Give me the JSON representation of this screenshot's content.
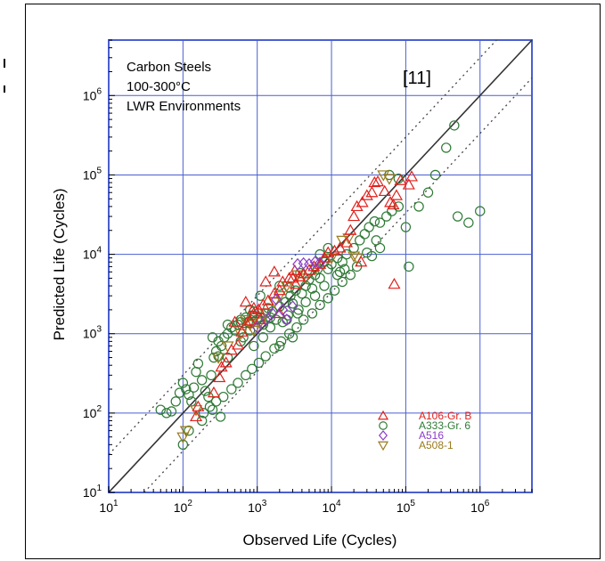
{
  "chart_data": {
    "type": "scatter",
    "xlabel": "Observed Life (Cycles)",
    "ylabel": "Predicted Life (Cycles)",
    "x_scale": "log",
    "y_scale": "log",
    "xlim": [
      10,
      5000000
    ],
    "ylim": [
      10,
      5000000
    ],
    "x_ticks": [
      {
        "base": "10",
        "exp": "1",
        "value": 10
      },
      {
        "base": "10",
        "exp": "2",
        "value": 100
      },
      {
        "base": "10",
        "exp": "3",
        "value": 1000
      },
      {
        "base": "10",
        "exp": "4",
        "value": 10000
      },
      {
        "base": "10",
        "exp": "5",
        "value": 100000
      },
      {
        "base": "10",
        "exp": "6",
        "value": 1000000
      }
    ],
    "y_ticks": [
      {
        "base": "10",
        "exp": "1",
        "value": 10
      },
      {
        "base": "10",
        "exp": "2",
        "value": 100
      },
      {
        "base": "10",
        "exp": "3",
        "value": 1000
      },
      {
        "base": "10",
        "exp": "4",
        "value": 10000
      },
      {
        "base": "10",
        "exp": "5",
        "value": 100000
      },
      {
        "base": "10",
        "exp": "6",
        "value": 1000000
      }
    ],
    "grid": true,
    "grid_color": "#4a5fd0",
    "info_lines": [
      "Carbon Steels",
      "100-300°C",
      "LWR Environments"
    ],
    "reference_label": "[11]",
    "legend_placement": "bottom-right",
    "reference_lines": [
      {
        "style": "solid",
        "factor": 1
      },
      {
        "style": "dotted",
        "factor": 3
      },
      {
        "style": "dotted",
        "factor": 0.333
      }
    ],
    "series": [
      {
        "name": "A106-Gr. B",
        "marker": "triangle-up",
        "color": "#e0201c",
        "points": [
          [
            150,
            90
          ],
          [
            160,
            120
          ],
          [
            260,
            180
          ],
          [
            310,
            280
          ],
          [
            330,
            380
          ],
          [
            380,
            430
          ],
          [
            450,
            620
          ],
          [
            550,
            720
          ],
          [
            620,
            1050
          ],
          [
            720,
            1350
          ],
          [
            800,
            1450
          ],
          [
            900,
            1800
          ],
          [
            1050,
            2000
          ],
          [
            1200,
            2300
          ],
          [
            1400,
            2600
          ],
          [
            1700,
            3200
          ],
          [
            2000,
            3500
          ],
          [
            2200,
            4500
          ],
          [
            2700,
            5000
          ],
          [
            3000,
            5000
          ],
          [
            3300,
            4200
          ],
          [
            3700,
            5200
          ],
          [
            4200,
            5700
          ],
          [
            5000,
            6300
          ],
          [
            5800,
            7000
          ],
          [
            7000,
            7500
          ],
          [
            8000,
            9000
          ],
          [
            9000,
            10500
          ],
          [
            11000,
            11000
          ],
          [
            13000,
            12000
          ],
          [
            16000,
            14000
          ],
          [
            18000,
            20000
          ],
          [
            20000,
            30000
          ],
          [
            22000,
            40000
          ],
          [
            26000,
            45000
          ],
          [
            30000,
            55000
          ],
          [
            35000,
            60000
          ],
          [
            38000,
            80000
          ],
          [
            42000,
            82000
          ],
          [
            52000,
            62000
          ],
          [
            62000,
            45000
          ],
          [
            68000,
            42000
          ],
          [
            75000,
            55000
          ],
          [
            85000,
            85000
          ],
          [
            110000,
            75000
          ],
          [
            120000,
            95000
          ],
          [
            25000,
            8000
          ],
          [
            70000,
            4200
          ],
          [
            1700,
            6000
          ],
          [
            3200,
            6200
          ],
          [
            1300,
            4500
          ],
          [
            2000,
            1800
          ],
          [
            700,
            2500
          ],
          [
            900,
            2100
          ],
          [
            1100,
            1500
          ],
          [
            500,
            1400
          ]
        ]
      },
      {
        "name": "A333-Gr. 6",
        "marker": "circle",
        "color": "#2f7a35",
        "points": [
          [
            50,
            110
          ],
          [
            60,
            100
          ],
          [
            70,
            105
          ],
          [
            80,
            140
          ],
          [
            90,
            180
          ],
          [
            100,
            240
          ],
          [
            110,
            200
          ],
          [
            120,
            170
          ],
          [
            130,
            140
          ],
          [
            140,
            210
          ],
          [
            150,
            330
          ],
          [
            160,
            420
          ],
          [
            180,
            260
          ],
          [
            200,
            190
          ],
          [
            220,
            160
          ],
          [
            240,
            300
          ],
          [
            260,
            500
          ],
          [
            280,
            600
          ],
          [
            300,
            520
          ],
          [
            330,
            700
          ],
          [
            360,
            900
          ],
          [
            400,
            1000
          ],
          [
            450,
            1200
          ],
          [
            500,
            1100
          ],
          [
            550,
            1300
          ],
          [
            600,
            1400
          ],
          [
            650,
            900
          ],
          [
            700,
            1600
          ],
          [
            750,
            1400
          ],
          [
            800,
            1100
          ],
          [
            850,
            1700
          ],
          [
            900,
            1900
          ],
          [
            1000,
            1500
          ],
          [
            1100,
            1600
          ],
          [
            1200,
            1300
          ],
          [
            1300,
            1800
          ],
          [
            1400,
            2100
          ],
          [
            1500,
            1600
          ],
          [
            1600,
            1900
          ],
          [
            1800,
            1500
          ],
          [
            2000,
            2200
          ],
          [
            2200,
            1400
          ],
          [
            2400,
            2500
          ],
          [
            2600,
            1700
          ],
          [
            2800,
            3000
          ],
          [
            3000,
            2400
          ],
          [
            3300,
            3500
          ],
          [
            3600,
            2000
          ],
          [
            4000,
            3200
          ],
          [
            4500,
            4000
          ],
          [
            5000,
            4800
          ],
          [
            5500,
            3700
          ],
          [
            6000,
            5500
          ],
          [
            6500,
            6500
          ],
          [
            7000,
            5000
          ],
          [
            8000,
            8000
          ],
          [
            9000,
            6500
          ],
          [
            10000,
            7500
          ],
          [
            12000,
            9000
          ],
          [
            14000,
            8000
          ],
          [
            16000,
            10000
          ],
          [
            20000,
            12000
          ],
          [
            24000,
            15000
          ],
          [
            28000,
            18000
          ],
          [
            32000,
            22000
          ],
          [
            38000,
            26000
          ],
          [
            45000,
            25000
          ],
          [
            55000,
            30000
          ],
          [
            65000,
            35000
          ],
          [
            80000,
            40000
          ],
          [
            100000,
            22000
          ],
          [
            110000,
            7000
          ],
          [
            150000,
            40000
          ],
          [
            200000,
            60000
          ],
          [
            250000,
            100000
          ],
          [
            350000,
            220000
          ],
          [
            450000,
            420000
          ],
          [
            500000,
            30000
          ],
          [
            700000,
            25000
          ],
          [
            1000000,
            35000
          ],
          [
            60000,
            100000
          ],
          [
            80000,
            90000
          ],
          [
            45000,
            12000
          ],
          [
            35000,
            9500
          ],
          [
            22000,
            7000
          ],
          [
            18000,
            5500
          ],
          [
            14000,
            4500
          ],
          [
            11000,
            3500
          ],
          [
            9000,
            2800
          ],
          [
            7000,
            2300
          ],
          [
            5500,
            1800
          ],
          [
            4200,
            1500
          ],
          [
            3400,
            1200
          ],
          [
            2700,
            1000
          ],
          [
            2100,
            800
          ],
          [
            1700,
            650
          ],
          [
            1300,
            520
          ],
          [
            1050,
            430
          ],
          [
            850,
            360
          ],
          [
            700,
            300
          ],
          [
            550,
            240
          ],
          [
            450,
            200
          ],
          [
            350,
            160
          ],
          [
            280,
            140
          ],
          [
            230,
            120
          ],
          [
            190,
            100
          ],
          [
            600,
            800
          ],
          [
            900,
            700
          ],
          [
            1200,
            900
          ],
          [
            1500,
            1200
          ],
          [
            2500,
            1500
          ],
          [
            3500,
            1800
          ],
          [
            4500,
            2500
          ],
          [
            6000,
            3000
          ],
          [
            8000,
            4000
          ],
          [
            13000,
            6000
          ],
          [
            100,
            40
          ],
          [
            120,
            60
          ],
          [
            180,
            80
          ],
          [
            250,
            110
          ],
          [
            320,
            90
          ],
          [
            400,
            500
          ],
          [
            300,
            800
          ],
          [
            250,
            900
          ],
          [
            2000,
            700
          ],
          [
            3000,
            900
          ],
          [
            600,
            1500
          ],
          [
            800,
            2000
          ],
          [
            400,
            1300
          ],
          [
            1100,
            3000
          ],
          [
            2000,
            4000
          ],
          [
            2700,
            3800
          ],
          [
            3800,
            5800
          ],
          [
            7000,
            10000
          ],
          [
            9000,
            12000
          ],
          [
            12000,
            5500
          ],
          [
            15000,
            6500
          ],
          [
            40000,
            15000
          ],
          [
            30000,
            10500
          ]
        ]
      },
      {
        "name": "A516",
        "marker": "diamond",
        "color": "#8a3cc8",
        "points": [
          [
            1300,
            1500
          ],
          [
            1800,
            2700
          ],
          [
            2500,
            1500
          ],
          [
            3000,
            2200
          ],
          [
            3500,
            7500
          ],
          [
            4200,
            7700
          ],
          [
            5000,
            7500
          ],
          [
            6000,
            8000
          ],
          [
            7000,
            7800
          ],
          [
            2200,
            2000
          ],
          [
            1600,
            1800
          ],
          [
            1000,
            1200
          ]
        ]
      },
      {
        "name": "A508-1",
        "marker": "triangle-down",
        "color": "#9a7a1c",
        "points": [
          [
            100,
            50
          ],
          [
            110,
            60
          ],
          [
            150,
            110
          ],
          [
            300,
            500
          ],
          [
            400,
            700
          ],
          [
            600,
            1000
          ],
          [
            700,
            1500
          ],
          [
            900,
            1100
          ],
          [
            1100,
            1400
          ],
          [
            1300,
            1800
          ],
          [
            1700,
            2500
          ],
          [
            2000,
            3000
          ],
          [
            2500,
            4000
          ],
          [
            3500,
            5500
          ],
          [
            4500,
            5000
          ],
          [
            6000,
            6500
          ],
          [
            10000,
            9000
          ],
          [
            14000,
            15000
          ],
          [
            17000,
            16000
          ],
          [
            20000,
            9500
          ],
          [
            22000,
            9000
          ],
          [
            50000,
            100000
          ],
          [
            60000,
            90000
          ],
          [
            800,
            1300
          ]
        ]
      }
    ]
  }
}
